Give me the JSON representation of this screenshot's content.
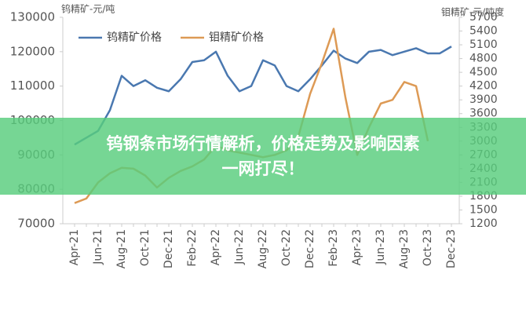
{
  "chart_data": {
    "type": "line",
    "y_label": "钨精矿-元/吨",
    "y2_label": "钼精矿-元/吨度",
    "categories": [
      "Apr-21",
      null,
      "Jun-21",
      null,
      "Aug-21",
      null,
      "Oct-21",
      null,
      "Dec-21",
      null,
      "Feb-22",
      null,
      "Apr-22",
      null,
      "Jun-22",
      null,
      "Aug-22",
      null,
      "Oct-22",
      null,
      "Dec-22",
      null,
      "Feb-23",
      null,
      "Apr-23",
      null,
      "Jun-23",
      null,
      "Aug-23",
      null,
      "Oct-23",
      null,
      "Dec-23"
    ],
    "series": [
      {
        "name": "钨精矿价格",
        "color": "#4a78b0",
        "values": [
          93000,
          95000,
          97000,
          103000,
          113000,
          110000,
          111700,
          109500,
          108500,
          112000,
          117000,
          117500,
          120000,
          113000,
          108500,
          110000,
          117500,
          116000,
          110000,
          108500,
          112000,
          116000,
          120300,
          118000,
          116700,
          120000,
          120500,
          119000,
          120000,
          121000,
          119500,
          119500,
          121500
        ]
      },
      {
        "name": "钼精矿价格",
        "color": "#dd9a55",
        "axis": "y2",
        "values": [
          1650,
          1750,
          2100,
          2300,
          2420,
          2400,
          2250,
          1990,
          2200,
          2350,
          2450,
          2600,
          2900,
          2800,
          2750,
          2700,
          2650,
          2700,
          2800,
          3100,
          4030,
          4700,
          5450,
          3950,
          2700,
          3300,
          3820,
          3900,
          4290,
          4200,
          3000,
          null,
          null
        ]
      }
    ],
    "ylim": [
      70000,
      130000
    ],
    "yticks": [
      70000,
      80000,
      90000,
      100000,
      110000,
      120000,
      130000
    ],
    "y2lim": [
      1200,
      5700
    ],
    "y2ticks": [
      1200,
      1500,
      1800,
      2100,
      2400,
      2700,
      3000,
      3300,
      3600,
      3900,
      4200,
      4500,
      4800,
      5100,
      5400,
      5700
    ],
    "grid": false,
    "legend": "top"
  },
  "banner": {
    "lines": [
      "钨钢条市场行情解析，价格走势及影响因素",
      "一网打尽！"
    ]
  }
}
